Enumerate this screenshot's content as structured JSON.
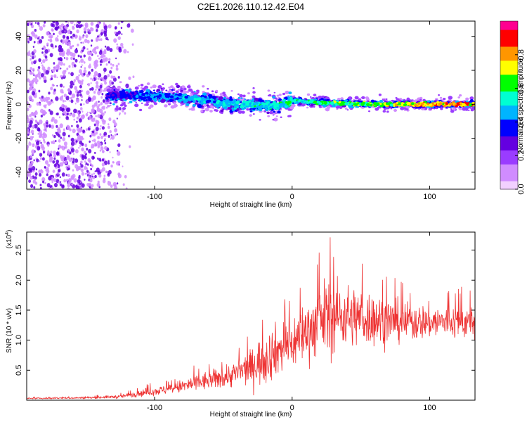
{
  "title": "C2E1.2026.110.12.42.E04",
  "chart_data": [
    {
      "type": "heatmap",
      "xlabel": "Height of straight line (km)",
      "ylabel": "Frequency (Hz)",
      "xlim": [
        -193,
        133
      ],
      "ylim": [
        -50,
        49
      ],
      "xticks": [
        -100,
        0,
        100
      ],
      "xtick_labels": [
        "-100",
        "0",
        "100"
      ],
      "yticks": [
        -40,
        -20,
        0,
        20,
        40
      ],
      "ytick_labels": [
        "-40",
        "-20",
        "0",
        "20",
        "40"
      ],
      "colorbar": {
        "label": "Normalized spectral amplitude",
        "range": [
          0.0,
          1.0
        ],
        "ticks": [
          0.0,
          0.2,
          0.4,
          0.6,
          0.8
        ],
        "tick_labels": [
          "0.0",
          "0.2",
          "0.4",
          "0.6",
          "0.8"
        ],
        "colormap": [
          "#f2d0ff",
          "#d08cff",
          "#9a3cff",
          "#6400e0",
          "#0000ff",
          "#00b4ff",
          "#00ffd2",
          "#00ff00",
          "#ffff00",
          "#ff9600",
          "#ff0000",
          "#ff0090"
        ]
      },
      "features": {
        "noise_region_x": [
          -193,
          -115
        ],
        "noise_amplitude": 0.2,
        "ridge_start_x": -135,
        "ridge_end_x": 133,
        "ridge_center_hz": [
          [
            -135,
            5
          ],
          [
            -100,
            5
          ],
          [
            -80,
            4
          ],
          [
            -60,
            2
          ],
          [
            -50,
            0
          ],
          [
            -30,
            0
          ],
          [
            -10,
            -1
          ],
          [
            0,
            2
          ],
          [
            20,
            1
          ],
          [
            60,
            0
          ],
          [
            100,
            0
          ],
          [
            133,
            0
          ]
        ],
        "ridge_amplitude": [
          [
            -135,
            0.35
          ],
          [
            -80,
            0.5
          ],
          [
            -40,
            0.55
          ],
          [
            0,
            0.6
          ],
          [
            40,
            0.7
          ],
          [
            80,
            0.78
          ],
          [
            100,
            0.9
          ],
          [
            133,
            0.9
          ]
        ]
      }
    },
    {
      "type": "line",
      "series": [
        {
          "name": "SNR",
          "color": "#ee3333"
        }
      ],
      "xlabel": "Height of straight line (km)",
      "ylabel": "SNR (10 * v/v)",
      "y_scale_label": "(x10",
      "y_scale_exponent": "4",
      "xlim": [
        -193,
        133
      ],
      "ylim": [
        0,
        2.8
      ],
      "xticks": [
        -100,
        0,
        100
      ],
      "xtick_labels": [
        "-100",
        "0",
        "100"
      ],
      "yticks": [
        0.5,
        1.0,
        1.5,
        2.0,
        2.5
      ],
      "ytick_labels": [
        "0.5",
        "1.0",
        "1.5",
        "2.0",
        "2.5"
      ],
      "envelope": {
        "x": [
          -193,
          -150,
          -125,
          -110,
          -90,
          -70,
          -50,
          -40,
          -30,
          -20,
          -10,
          0,
          10,
          20,
          25,
          40,
          60,
          80,
          100,
          133
        ],
        "mean": [
          0.03,
          0.04,
          0.06,
          0.12,
          0.18,
          0.28,
          0.38,
          0.45,
          0.55,
          0.7,
          0.85,
          0.95,
          1.15,
          1.3,
          1.4,
          1.4,
          1.35,
          1.3,
          1.3,
          1.3
        ],
        "max": [
          0.05,
          0.07,
          0.12,
          0.25,
          0.35,
          0.6,
          0.75,
          0.95,
          1.15,
          1.65,
          1.75,
          1.9,
          2.2,
          2.5,
          2.8,
          2.5,
          2.3,
          2.0,
          1.9,
          1.9
        ]
      }
    }
  ]
}
